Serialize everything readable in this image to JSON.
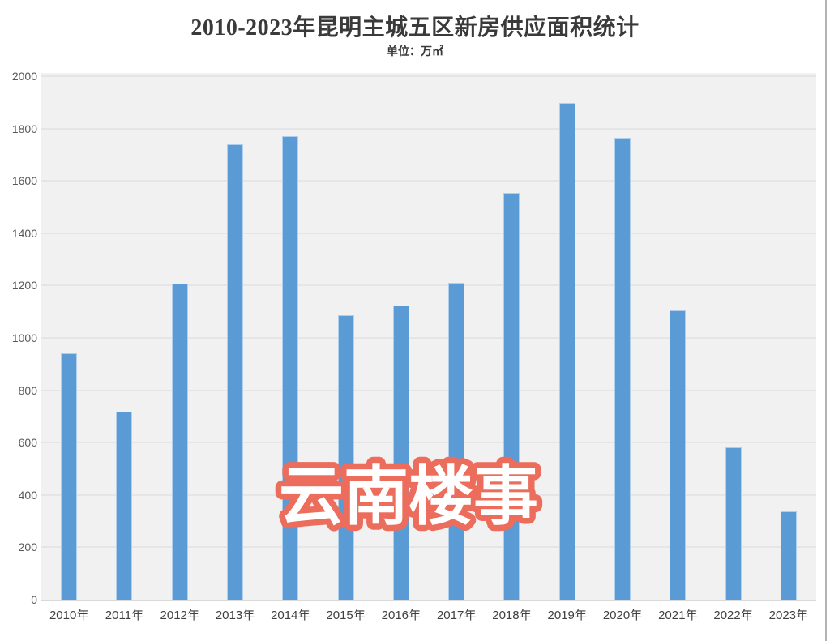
{
  "header": {
    "title": "2010-2023年昆明主城五区新房供应面积统计",
    "unit_label": "单位：万㎡"
  },
  "watermark": {
    "text": "云南楼事",
    "fill_color": "#ffffff",
    "outline_color": "#ec6d5c"
  },
  "colors": {
    "bar": "#5b9bd5",
    "plot_background": "#f1f1f1",
    "gridline": "#e5e5e5",
    "baseline": "#d9d9d9",
    "axis_text": "#595959",
    "category_text": "#404040",
    "title_text": "#3a3a3a"
  },
  "chart_data": {
    "type": "bar",
    "title": "2010-2023年昆明主城五区新房供应面积统计",
    "subtitle": "单位：万㎡",
    "unit": "万㎡",
    "categories": [
      "2010年",
      "2011年",
      "2012年",
      "2013年",
      "2014年",
      "2015年",
      "2016年",
      "2017年",
      "2018年",
      "2019年",
      "2020年",
      "2021年",
      "2022年",
      "2023年"
    ],
    "values": [
      941,
      718,
      1206,
      1739,
      1772,
      1088,
      1124,
      1212,
      1555,
      1897,
      1764,
      1105,
      582,
      338
    ],
    "xlabel": "",
    "ylabel": "",
    "ylim": [
      0,
      2000
    ],
    "yticks": [
      0,
      200,
      400,
      600,
      800,
      1000,
      1200,
      1400,
      1600,
      1800,
      2000
    ],
    "grid": true,
    "legend": "none",
    "bar_color": "#5b9bd5"
  }
}
